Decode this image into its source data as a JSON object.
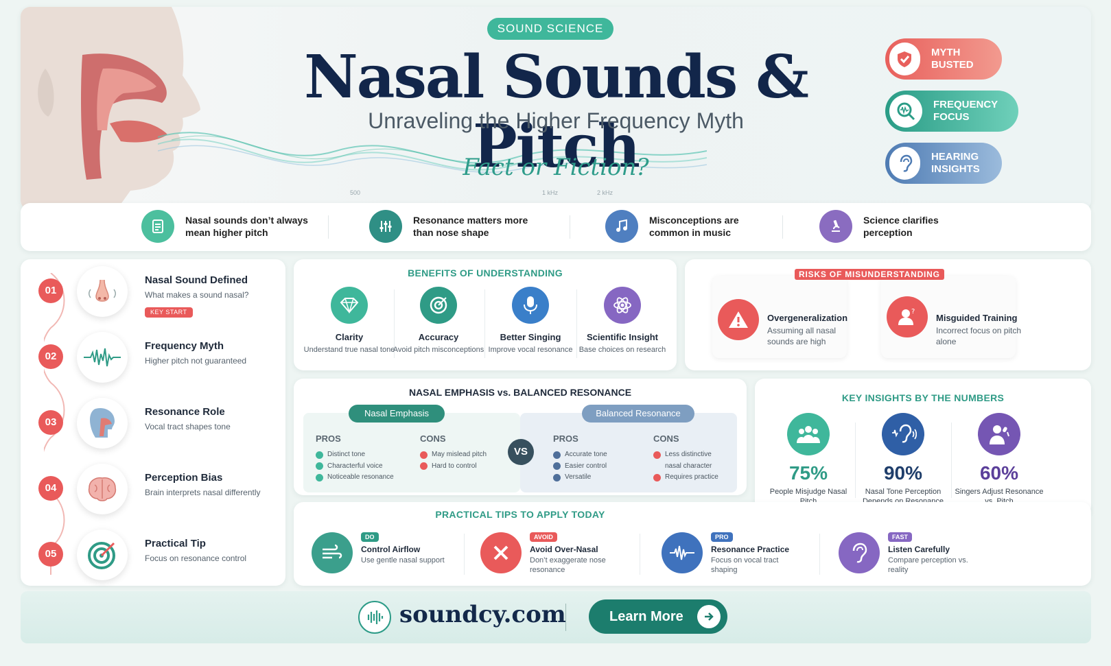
{
  "hero": {
    "tag": "SOUND SCIENCE",
    "title": "Nasal Sounds & Pitch",
    "subtitle": "Unraveling the Higher Frequency Myth",
    "tagline": "Fact or Fiction?",
    "freq_labels": [
      "500",
      "1 kHz",
      "2 kHz"
    ],
    "badges": [
      {
        "label": "MYTH BUSTED",
        "icon": "shield-check-icon",
        "color": "#e8706c"
      },
      {
        "label": "FREQUENCY FOCUS",
        "icon": "magnifier-wave-icon",
        "color": "#3fb79b"
      },
      {
        "label": "HEARING INSIGHTS",
        "icon": "ear-icon",
        "color": "#5b86b8"
      }
    ]
  },
  "strip": [
    {
      "text": "Nasal sounds don’t always mean higher pitch",
      "icon": "document-icon",
      "color": "#4cbf9e"
    },
    {
      "text": "Resonance matters more than nose shape",
      "icon": "equalizer-icon",
      "color": "#2f8f85"
    },
    {
      "text": "Misconceptions are common in music",
      "icon": "music-note-icon",
      "color": "#4f7fc0"
    },
    {
      "text": "Science clarifies perception",
      "icon": "microscope-icon",
      "color": "#8a6cc0"
    }
  ],
  "timeline": [
    {
      "num": "01",
      "title": "Nasal Sound Defined",
      "desc": "What makes a sound nasal?",
      "tag": "KEY START",
      "icon": "nose-icon"
    },
    {
      "num": "02",
      "title": "Frequency Myth",
      "desc": "Higher pitch not guaranteed",
      "icon": "waveform-icon"
    },
    {
      "num": "03",
      "title": "Resonance Role",
      "desc": "Vocal tract shapes tone",
      "icon": "head-profile-icon"
    },
    {
      "num": "04",
      "title": "Perception Bias",
      "desc": "Brain interprets nasal differently",
      "icon": "brain-icon"
    },
    {
      "num": "05",
      "title": "Practical Tip",
      "desc": "Focus on resonance control",
      "icon": "target-icon"
    }
  ],
  "benefits": {
    "title": "BENEFITS OF UNDERSTANDING",
    "items": [
      {
        "title": "Clarity",
        "desc": "Understand true nasal tone",
        "icon": "diamond-icon",
        "color": "#3fb79b"
      },
      {
        "title": "Accuracy",
        "desc": "Avoid pitch misconceptions",
        "icon": "target-icon",
        "color": "#2f9b86"
      },
      {
        "title": "Better Singing",
        "desc": "Improve vocal resonance",
        "icon": "microphone-icon",
        "color": "#3a7fc9"
      },
      {
        "title": "Scientific Insight",
        "desc": "Base choices on research",
        "icon": "atom-icon",
        "color": "#8667c2"
      }
    ]
  },
  "risks": {
    "title": "RISKS OF MISUNDERSTANDING",
    "items": [
      {
        "title": "Overgeneralization",
        "desc": "Assuming all nasal sounds are high",
        "icon": "warning-icon"
      },
      {
        "title": "Misguided Training",
        "desc": "Incorrect focus on pitch alone",
        "icon": "person-question-icon"
      }
    ]
  },
  "comparison": {
    "title": "NASAL EMPHASIS vs. BALANCED RESONANCE",
    "vs": "VS",
    "left": {
      "name": "Nasal Emphasis",
      "pros_label": "PROS",
      "cons_label": "CONS",
      "pros": [
        "Distinct tone",
        "Characterful voice",
        "Noticeable resonance"
      ],
      "cons": [
        "May mislead pitch",
        "Hard to control"
      ]
    },
    "right": {
      "name": "Balanced Resonance",
      "pros_label": "PROS",
      "cons_label": "CONS",
      "pros": [
        "Accurate tone",
        "Easier control",
        "Versatile"
      ],
      "cons": [
        "Less distinctive nasal character",
        "Requires practice"
      ]
    }
  },
  "insights": {
    "title": "KEY INSIGHTS BY THE NUMBERS",
    "items": [
      {
        "value": "75%",
        "percent": 75,
        "label": "People Misjudge Nasal Pitch",
        "icon": "people-group-icon",
        "color": "#3fb79b"
      },
      {
        "value": "90%",
        "percent": 90,
        "label": "Nasal Tone Perception Depends on Resonance",
        "icon": "ear-wave-icon",
        "color": "#2f5fa6"
      },
      {
        "value": "60%",
        "percent": 60,
        "label": "Singers Adjust Resonance vs. Pitch",
        "icon": "singer-icon",
        "color": "#7556b3"
      }
    ]
  },
  "tips": {
    "title": "PRACTICAL TIPS TO APPLY TODAY",
    "items": [
      {
        "badge": "DO",
        "title": "Control Airflow",
        "desc": "Use gentle nasal support",
        "icon": "wind-icon",
        "color": "#3b9f8c",
        "badge_color": "#2f9b86"
      },
      {
        "badge": "AVOID",
        "title": "Avoid Over-Nasal",
        "desc": "Don’t exaggerate nose resonance",
        "icon": "x-icon",
        "color": "#e95a5a",
        "badge_color": "#e95a5a"
      },
      {
        "badge": "PRO",
        "title": "Resonance Practice",
        "desc": "Focus on vocal tract shaping",
        "icon": "waveform-icon",
        "color": "#3f72bd",
        "badge_color": "#3f72bd"
      },
      {
        "badge": "FAST",
        "title": "Listen Carefully",
        "desc": "Compare perception vs. reality",
        "icon": "ear-icon",
        "color": "#8667c2",
        "badge_color": "#8667c2"
      }
    ]
  },
  "footer": {
    "site": "soundcy.com",
    "button": "Learn More",
    "logo_icon": "sound-wave-logo-icon",
    "arrow_icon": "arrow-right-icon"
  }
}
